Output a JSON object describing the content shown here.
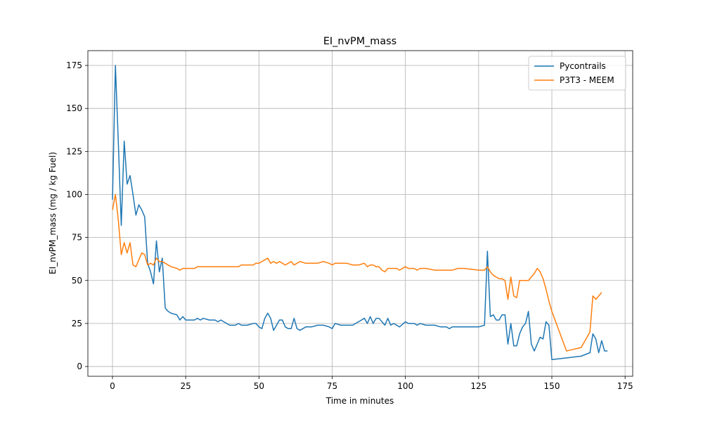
{
  "chart_data": {
    "type": "line",
    "title": "EI_nvPM_mass",
    "x_label": "Time in minutes",
    "y_label": "EI_nvPM_mass (mg / kg Fuel)",
    "x": [
      0,
      1,
      2,
      3,
      4,
      5,
      6,
      7,
      8,
      9,
      10,
      11,
      12,
      13,
      14,
      15,
      16,
      17,
      18,
      19,
      20,
      22,
      23,
      24,
      25,
      27,
      28,
      29,
      30,
      31,
      33,
      35,
      36,
      37,
      38,
      40,
      42,
      43,
      44,
      46,
      48,
      49,
      50,
      51,
      52,
      53,
      54,
      55,
      56,
      57,
      58,
      59,
      60,
      61,
      62,
      63,
      64,
      66,
      68,
      70,
      72,
      74,
      75,
      76,
      78,
      80,
      82,
      84,
      86,
      87,
      88,
      89,
      90,
      91,
      92,
      93,
      94,
      95,
      96,
      97,
      98,
      100,
      101,
      103,
      104,
      105,
      107,
      110,
      112,
      114,
      115,
      116,
      118,
      120,
      125,
      127,
      128,
      129,
      130,
      131,
      132,
      133,
      134,
      135,
      136,
      137,
      138,
      139,
      140,
      141,
      142,
      143,
      144,
      145,
      146,
      147,
      148,
      149,
      150,
      155,
      160,
      163,
      164,
      165,
      166,
      167,
      168,
      169
    ],
    "series": [
      {
        "name": "Pycontrails",
        "color": "#1f77b4",
        "values": [
          97,
          175,
          130,
          82,
          131,
          106,
          111,
          100,
          88,
          94,
          91,
          87,
          60,
          55,
          48,
          73,
          55,
          63,
          34,
          32,
          31,
          30,
          27,
          29,
          27,
          27,
          27,
          28,
          27,
          28,
          27,
          27,
          26,
          27,
          26,
          24,
          24,
          25,
          24,
          24,
          25,
          25,
          23,
          22,
          28,
          31,
          28,
          21,
          24,
          27,
          27,
          23,
          22,
          22,
          28,
          22,
          21,
          23,
          23,
          24,
          24,
          23,
          22,
          25,
          24,
          24,
          24,
          26,
          28,
          25,
          29,
          25,
          28,
          28,
          26,
          24,
          28,
          24,
          25,
          24,
          23,
          26,
          25,
          25,
          24,
          25,
          24,
          24,
          23,
          23,
          22,
          23,
          23,
          23,
          23,
          24,
          67,
          29,
          30,
          27,
          27,
          30,
          30,
          13,
          25,
          12,
          12,
          19,
          23,
          25,
          32,
          13,
          9,
          13,
          17,
          16,
          26,
          24,
          4,
          5,
          6,
          8,
          19,
          16,
          8,
          15,
          9,
          9
        ]
      },
      {
        "name": "P3T3 - MEEM",
        "color": "#ff7f0e",
        "values": [
          91,
          100,
          85,
          65,
          72,
          66,
          72,
          59,
          58,
          62,
          66,
          65,
          59,
          60,
          59,
          63,
          61,
          61,
          60,
          59,
          58,
          57,
          56,
          57,
          57,
          57,
          57,
          58,
          58,
          58,
          58,
          58,
          58,
          58,
          58,
          58,
          58,
          58,
          59,
          59,
          59,
          60,
          60,
          61,
          62,
          63,
          60,
          61,
          60,
          61,
          60,
          59,
          60,
          61,
          59,
          60,
          61,
          60,
          60,
          60,
          61,
          60,
          59,
          60,
          60,
          60,
          59,
          59,
          60,
          58,
          59,
          59,
          58,
          58,
          56,
          55,
          57,
          57,
          57,
          57,
          56,
          58,
          57,
          57,
          56,
          57,
          57,
          56,
          56,
          56,
          56,
          56,
          57,
          57,
          56,
          56,
          58,
          55,
          53,
          52,
          51,
          51,
          50,
          39,
          52,
          41,
          40,
          50,
          50,
          50,
          50,
          52,
          54,
          57,
          55,
          51,
          45,
          38,
          32,
          9,
          11,
          20,
          41,
          39,
          41,
          43,
          null,
          null
        ]
      }
    ],
    "xlim": [
      -8.4,
      177.6
    ],
    "ylim": [
      -5.7,
      183.6
    ],
    "xticks": [
      0,
      25,
      50,
      75,
      100,
      125,
      150,
      175
    ],
    "yticks": [
      0,
      25,
      50,
      75,
      100,
      125,
      150,
      175
    ],
    "grid": true,
    "legend_position": "upper-right"
  }
}
